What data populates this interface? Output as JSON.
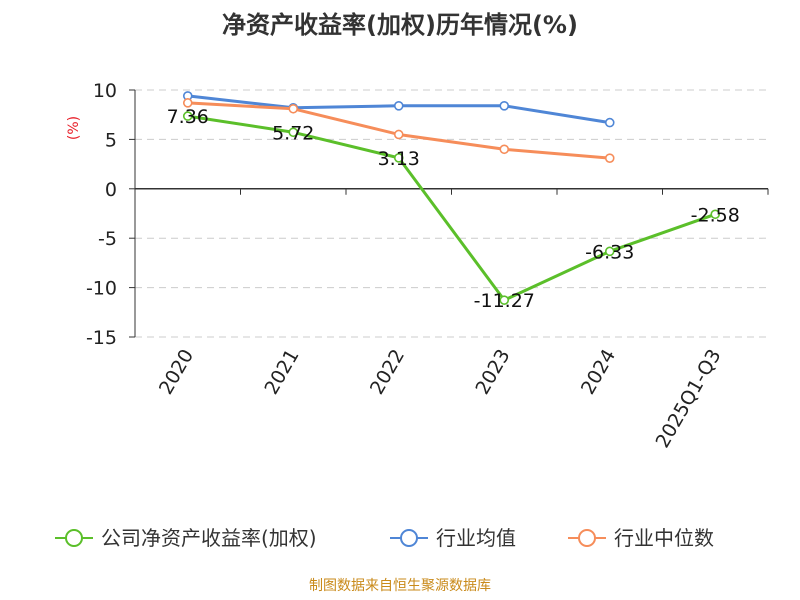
{
  "title": "净资产收益率(加权)历年情况(%)",
  "source": "制图数据来自恒生聚源数据库",
  "chart_data": {
    "type": "line",
    "title": "净资产收益率(加权)历年情况(%)",
    "ylabel": "(%)",
    "xlabel": "",
    "categories": [
      "2020",
      "2021",
      "2022",
      "2023",
      "2024",
      "2025Q1-Q3"
    ],
    "ylim": [
      -15,
      10
    ],
    "yticks": [
      10,
      5,
      0,
      -5,
      -10,
      -15
    ],
    "ytick_labels": [
      "10",
      "5",
      "0",
      "-5",
      "-10",
      "-15"
    ],
    "grid": true,
    "legend_position": "bottom",
    "series": [
      {
        "name": "公司净资产收益率(加权)",
        "color": "#5bbf2a",
        "values": [
          7.36,
          5.72,
          3.13,
          -11.27,
          -6.33,
          -2.58
        ],
        "data_labels": [
          "7.36",
          "5.72",
          "3.13",
          "-11.27",
          "-6.33",
          "-2.58"
        ]
      },
      {
        "name": "行业均值",
        "color": "#4f86d6",
        "values": [
          9.4,
          8.2,
          8.4,
          8.4,
          6.7,
          null
        ]
      },
      {
        "name": "行业中位数",
        "color": "#f68d5a",
        "values": [
          8.7,
          8.1,
          5.5,
          4.0,
          3.1,
          null
        ]
      }
    ]
  }
}
